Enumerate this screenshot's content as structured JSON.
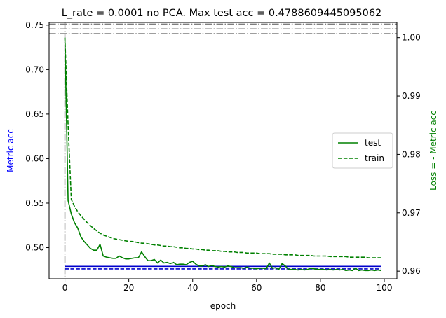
{
  "chart_data": {
    "type": "line",
    "title": "L_rate = 0.0001 no PCA. Max test acc = 0.4788609445095062",
    "xlabel": "epoch",
    "ylabel_left": "Metric acc",
    "ylabel_right": "Loss = - Metric acc",
    "xlim": [
      -4.95,
      103.95
    ],
    "ylim_left": [
      0.465,
      0.753
    ],
    "ylim_right": [
      0.9587,
      1.0026
    ],
    "xticks": [
      0,
      20,
      40,
      60,
      80,
      100
    ],
    "yticks_left": [
      0.5,
      0.55,
      0.6,
      0.65,
      0.7,
      0.75
    ],
    "yticks_right": [
      0.96,
      0.97,
      0.98,
      0.99,
      1.0
    ],
    "grid": false,
    "legend_position": "center-right",
    "colors": {
      "left_axis": "#0000ff",
      "right_axis": "#008000",
      "reference": "#7f7f7f"
    },
    "left_series": [
      {
        "style": "solid",
        "color": "#0000cc",
        "x": [
          0,
          99
        ],
        "y": [
          0.4789,
          0.4789
        ]
      },
      {
        "style": "dashed",
        "color": "#0000cc",
        "x": [
          0,
          99
        ],
        "y": [
          0.4761,
          0.4761
        ]
      }
    ],
    "right_series": [
      {
        "name": "test",
        "style": "solid",
        "color": "#008000",
        "x": [
          0,
          1,
          2,
          3,
          4,
          5,
          6,
          7,
          8,
          9,
          10,
          11,
          12,
          13,
          14,
          15,
          16,
          17,
          18,
          19,
          20,
          21,
          22,
          23,
          24,
          25,
          26,
          27,
          28,
          29,
          30,
          31,
          32,
          33,
          34,
          35,
          36,
          37,
          38,
          39,
          40,
          41,
          42,
          43,
          44,
          45,
          46,
          47,
          48,
          49,
          50,
          51,
          52,
          53,
          54,
          55,
          56,
          57,
          58,
          59,
          60,
          61,
          62,
          63,
          64,
          65,
          66,
          67,
          68,
          69,
          70,
          71,
          72,
          73,
          74,
          75,
          76,
          77,
          78,
          79,
          80,
          81,
          82,
          83,
          84,
          85,
          86,
          87,
          88,
          89,
          90,
          91,
          92,
          93,
          94,
          95,
          96,
          97,
          98,
          99
        ],
        "y": [
          1.0,
          0.9721,
          0.9698,
          0.9683,
          0.9674,
          0.9659,
          0.9651,
          0.9645,
          0.9639,
          0.9636,
          0.9636,
          0.9646,
          0.9626,
          0.9624,
          0.9623,
          0.9622,
          0.9622,
          0.9626,
          0.9623,
          0.9621,
          0.9621,
          0.9622,
          0.9623,
          0.9623,
          0.9633,
          0.9625,
          0.9618,
          0.9618,
          0.962,
          0.9614,
          0.9619,
          0.9614,
          0.9615,
          0.9613,
          0.9615,
          0.9611,
          0.9612,
          0.9612,
          0.9611,
          0.9615,
          0.9617,
          0.9612,
          0.9609,
          0.9609,
          0.9611,
          0.9608,
          0.961,
          0.9608,
          0.9607,
          0.9608,
          0.9607,
          0.9609,
          0.9608,
          0.9606,
          0.9606,
          0.9606,
          0.9605,
          0.9607,
          0.9605,
          0.9605,
          0.9604,
          0.9605,
          0.9605,
          0.9604,
          0.9614,
          0.9605,
          0.9606,
          0.9603,
          0.9613,
          0.9609,
          0.9603,
          0.9603,
          0.9603,
          0.9602,
          0.9603,
          0.9602,
          0.9603,
          0.9605,
          0.9604,
          0.9603,
          0.9603,
          0.9603,
          0.9602,
          0.9603,
          0.9602,
          0.9603,
          0.9602,
          0.9603,
          0.9601,
          0.9602,
          0.9601,
          0.9605,
          0.9601,
          0.9602,
          0.9601,
          0.9601,
          0.9602,
          0.9601,
          0.9602,
          0.9601
        ]
      },
      {
        "name": "train",
        "style": "dashed",
        "color": "#008000",
        "x": [
          0,
          1,
          2,
          3,
          4,
          5,
          6,
          7,
          8,
          9,
          10,
          11,
          12,
          13,
          14,
          15,
          16,
          17,
          18,
          19,
          20,
          21,
          22,
          23,
          24,
          25,
          26,
          27,
          28,
          29,
          30,
          31,
          32,
          33,
          34,
          35,
          36,
          37,
          38,
          39,
          40,
          41,
          42,
          43,
          44,
          45,
          46,
          47,
          48,
          49,
          50,
          51,
          52,
          53,
          54,
          55,
          56,
          57,
          58,
          59,
          60,
          61,
          62,
          63,
          64,
          65,
          66,
          67,
          68,
          69,
          70,
          71,
          72,
          73,
          74,
          75,
          76,
          77,
          78,
          79,
          80,
          81,
          82,
          83,
          84,
          85,
          86,
          87,
          88,
          89,
          90,
          91,
          92,
          93,
          94,
          95,
          96,
          97,
          98,
          99
        ],
        "y": [
          1.0,
          0.985,
          0.9723,
          0.9711,
          0.9702,
          0.9695,
          0.9689,
          0.9683,
          0.9678,
          0.9673,
          0.9669,
          0.9665,
          0.9662,
          0.966,
          0.9658,
          0.9656,
          0.9655,
          0.9654,
          0.9653,
          0.9652,
          0.9651,
          0.9651,
          0.965,
          0.9649,
          0.9648,
          0.9648,
          0.9647,
          0.9646,
          0.9645,
          0.9645,
          0.9644,
          0.9643,
          0.9643,
          0.9642,
          0.9642,
          0.9641,
          0.964,
          0.964,
          0.9639,
          0.9639,
          0.9638,
          0.9638,
          0.9637,
          0.9637,
          0.9636,
          0.9636,
          0.9635,
          0.9635,
          0.9635,
          0.9634,
          0.9634,
          0.9633,
          0.9633,
          0.9633,
          0.9632,
          0.9632,
          0.9632,
          0.9631,
          0.9631,
          0.9631,
          0.9631,
          0.963,
          0.963,
          0.963,
          0.963,
          0.9629,
          0.9629,
          0.9629,
          0.9629,
          0.9628,
          0.9628,
          0.9628,
          0.9628,
          0.9627,
          0.9627,
          0.9627,
          0.9627,
          0.9627,
          0.9626,
          0.9626,
          0.9626,
          0.9626,
          0.9626,
          0.9625,
          0.9625,
          0.9625,
          0.9625,
          0.9625,
          0.9625,
          0.9624,
          0.9624,
          0.9624,
          0.9624,
          0.9624,
          0.9624,
          0.9623,
          0.9623,
          0.9623,
          0.9623,
          0.9623
        ]
      }
    ],
    "reference_lines": {
      "style": "dashdot",
      "color": "#7f7f7f",
      "vertical_x": [
        0
      ],
      "horizontal_left_y": [
        0.7404,
        0.7457,
        0.7511
      ]
    }
  }
}
